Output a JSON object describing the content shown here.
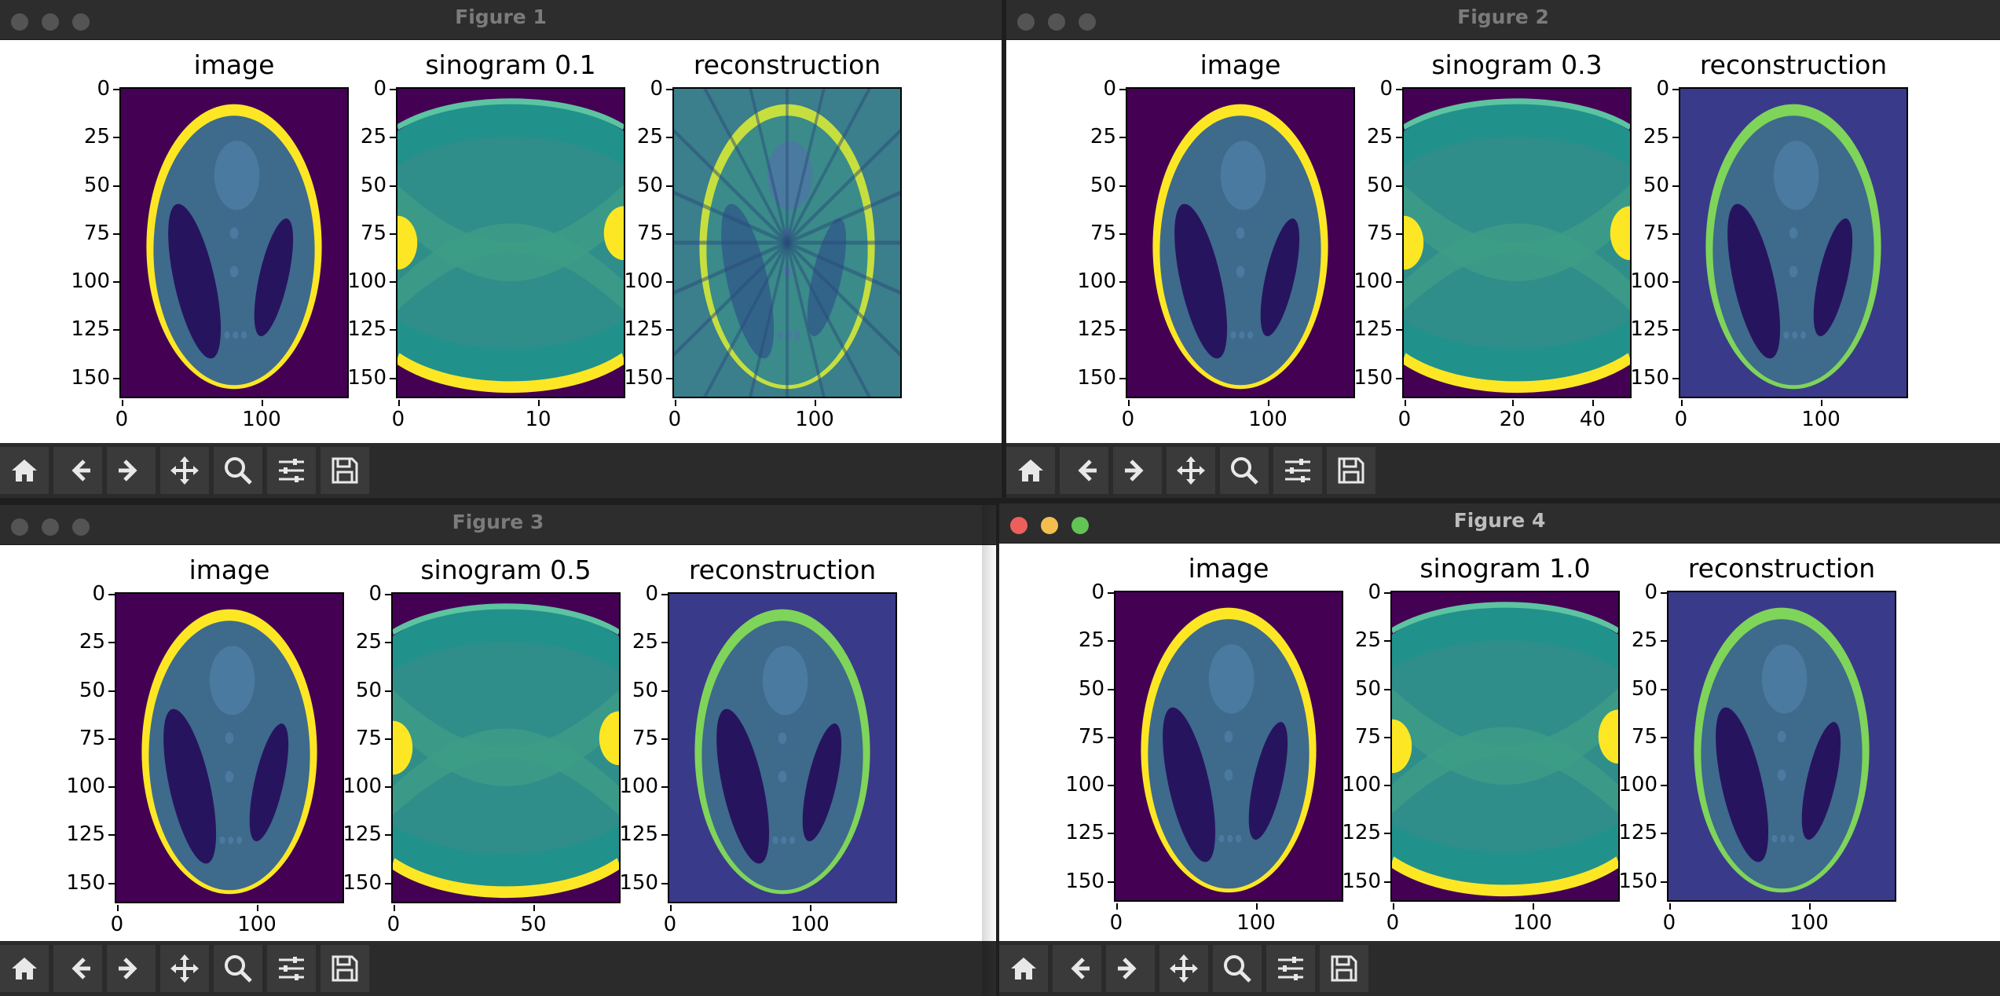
{
  "colors": {
    "bg_dark": "#440154",
    "bg_sino": "#3b528b",
    "ring": "#fde725",
    "inner": "#3e6a8c",
    "blob": "#27145f",
    "mid": "#21918c",
    "accent_green": "#5ec962"
  },
  "windows": [
    {
      "title": "Figure 1",
      "active": false,
      "panels": [
        {
          "title": "image",
          "yticks": [
            "0",
            "25",
            "50",
            "75",
            "100",
            "125",
            "150"
          ],
          "xticks": [
            "0",
            "100"
          ],
          "type": "image"
        },
        {
          "title": "sinogram 0.1",
          "yticks": [
            "0",
            "25",
            "50",
            "75",
            "100",
            "125",
            "150"
          ],
          "xticks": [
            "0",
            "10"
          ],
          "type": "sinogram"
        },
        {
          "title": "reconstruction",
          "yticks": [
            "0",
            "25",
            "50",
            "75",
            "100",
            "125",
            "150"
          ],
          "xticks": [
            "0",
            "100"
          ],
          "type": "recon_coarse"
        }
      ]
    },
    {
      "title": "Figure 2",
      "active": false,
      "panels": [
        {
          "title": "image",
          "yticks": [
            "0",
            "25",
            "50",
            "75",
            "100",
            "125",
            "150"
          ],
          "xticks": [
            "0",
            "100"
          ],
          "type": "image"
        },
        {
          "title": "sinogram 0.3",
          "yticks": [
            "0",
            "25",
            "50",
            "75",
            "100",
            "125",
            "150"
          ],
          "xticks": [
            "0",
            "20",
            "40"
          ],
          "type": "sinogram"
        },
        {
          "title": "reconstruction",
          "yticks": [
            "0",
            "25",
            "50",
            "75",
            "100",
            "125",
            "150"
          ],
          "xticks": [
            "0",
            "100"
          ],
          "type": "recon"
        }
      ]
    },
    {
      "title": "Figure 3",
      "active": false,
      "panels": [
        {
          "title": "image",
          "yticks": [
            "0",
            "25",
            "50",
            "75",
            "100",
            "125",
            "150"
          ],
          "xticks": [
            "0",
            "100"
          ],
          "type": "image"
        },
        {
          "title": "sinogram 0.5",
          "yticks": [
            "0",
            "25",
            "50",
            "75",
            "100",
            "125",
            "150"
          ],
          "xticks": [
            "0",
            "50"
          ],
          "type": "sinogram"
        },
        {
          "title": "reconstruction",
          "yticks": [
            "0",
            "25",
            "50",
            "75",
            "100",
            "125",
            "150"
          ],
          "xticks": [
            "0",
            "100"
          ],
          "type": "recon"
        }
      ]
    },
    {
      "title": "Figure 4",
      "active": true,
      "panels": [
        {
          "title": "image",
          "yticks": [
            "0",
            "25",
            "50",
            "75",
            "100",
            "125",
            "150"
          ],
          "xticks": [
            "0",
            "100"
          ],
          "type": "image"
        },
        {
          "title": "sinogram 1.0",
          "yticks": [
            "0",
            "25",
            "50",
            "75",
            "100",
            "125",
            "150"
          ],
          "xticks": [
            "0",
            "100"
          ],
          "type": "sinogram"
        },
        {
          "title": "reconstruction",
          "yticks": [
            "0",
            "25",
            "50",
            "75",
            "100",
            "125",
            "150"
          ],
          "xticks": [
            "0",
            "100"
          ],
          "type": "recon"
        }
      ]
    }
  ],
  "toolbar": [
    {
      "name": "home-icon",
      "tooltip": "Reset original view"
    },
    {
      "name": "back-arrow-icon",
      "tooltip": "Back"
    },
    {
      "name": "forward-arrow-icon",
      "tooltip": "Forward"
    },
    {
      "name": "pan-icon",
      "tooltip": "Pan"
    },
    {
      "name": "zoom-icon",
      "tooltip": "Zoom"
    },
    {
      "name": "configure-subplots-icon",
      "tooltip": "Configure subplots"
    },
    {
      "name": "save-icon",
      "tooltip": "Save the figure"
    }
  ]
}
